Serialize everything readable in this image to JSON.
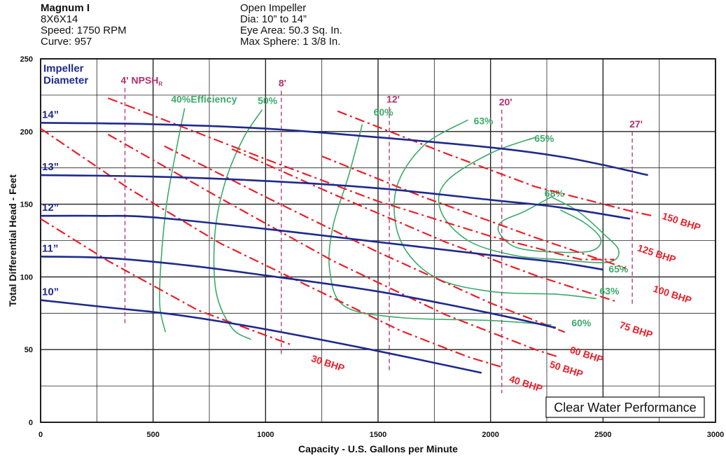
{
  "header": {
    "left": [
      "Magnum I",
      "8X6X14",
      "Speed: 1750 RPM",
      "Curve: 957"
    ],
    "right": [
      "Open Impeller",
      "Dia: 10” to 14”",
      "Eye Area: 50.3 Sq. In.",
      "Max Sphere: 1 3/8 In."
    ]
  },
  "colors": {
    "impeller": "#1f2a8c",
    "bhp": "#e8202a",
    "efficiency": "#3caa6a",
    "npsh": "#b0306e",
    "grid": "#222222"
  },
  "chart_data": {
    "type": "line",
    "title": "",
    "xlabel": "Capacity - U.S. Gallons per Minute",
    "ylabel": "Total Differential Head - Feet",
    "xlim": [
      0,
      3000
    ],
    "ylim": [
      0,
      250
    ],
    "xticks": [
      0,
      500,
      1000,
      1500,
      2000,
      2500,
      3000
    ],
    "yticks": [
      0,
      50,
      100,
      150,
      200,
      250
    ],
    "grid": true,
    "legend_box": "Clear Water Performance",
    "impeller_label": [
      "Impeller",
      "Diameter"
    ],
    "impeller_curves": [
      {
        "name": "14”",
        "points": [
          [
            0,
            206
          ],
          [
            500,
            205
          ],
          [
            1000,
            202
          ],
          [
            1500,
            196
          ],
          [
            2000,
            189
          ],
          [
            2300,
            183
          ],
          [
            2500,
            177
          ],
          [
            2700,
            170
          ]
        ]
      },
      {
        "name": "13”",
        "points": [
          [
            0,
            170
          ],
          [
            500,
            169
          ],
          [
            1000,
            166
          ],
          [
            1500,
            161
          ],
          [
            2000,
            153
          ],
          [
            2300,
            148
          ],
          [
            2620,
            140
          ]
        ]
      },
      {
        "name": "12”",
        "points": [
          [
            0,
            142
          ],
          [
            250,
            142
          ],
          [
            500,
            141
          ],
          [
            1000,
            133
          ],
          [
            1500,
            124
          ],
          [
            2000,
            115
          ],
          [
            2300,
            110
          ],
          [
            2500,
            105
          ]
        ]
      },
      {
        "name": "11”",
        "points": [
          [
            0,
            114
          ],
          [
            300,
            113
          ],
          [
            650,
            108
          ],
          [
            1000,
            101
          ],
          [
            1500,
            90
          ],
          [
            2000,
            75
          ],
          [
            2290,
            65
          ]
        ]
      },
      {
        "name": "10”",
        "points": [
          [
            0,
            84
          ],
          [
            300,
            79
          ],
          [
            600,
            74
          ],
          [
            1000,
            64
          ],
          [
            1500,
            49
          ],
          [
            1960,
            34
          ]
        ]
      }
    ],
    "bhp_lines": [
      {
        "label": "30 BHP",
        "points": [
          [
            0,
            140
          ],
          [
            300,
            111
          ],
          [
            700,
            77
          ],
          [
            1120,
            53
          ]
        ]
      },
      {
        "label": "40 BHP",
        "points": [
          [
            0,
            202
          ],
          [
            400,
            160
          ],
          [
            800,
            123
          ],
          [
            1200,
            93
          ],
          [
            1600,
            63
          ],
          [
            1900,
            45
          ],
          [
            2050,
            38
          ]
        ]
      },
      {
        "label": "50 BHP",
        "points": [
          [
            300,
            198
          ],
          [
            800,
            154
          ],
          [
            1300,
            111
          ],
          [
            1800,
            74
          ],
          [
            2200,
            50
          ],
          [
            2300,
            45
          ]
        ]
      },
      {
        "label": "60 BHP",
        "points": [
          [
            550,
            190
          ],
          [
            1000,
            155
          ],
          [
            1500,
            117
          ],
          [
            2000,
            82
          ],
          [
            2330,
            62
          ]
        ]
      },
      {
        "label": "75 BHP",
        "points": [
          [
            850,
            188
          ],
          [
            1300,
            157
          ],
          [
            1800,
            124
          ],
          [
            2200,
            101
          ],
          [
            2560,
            83
          ]
        ]
      },
      {
        "label": "100 BHP",
        "points": [
          [
            1250,
            183
          ],
          [
            1700,
            155
          ],
          [
            2200,
            127
          ],
          [
            2600,
            106
          ]
        ]
      },
      {
        "label": "125 BHP",
        "points": [
          [
            300,
            223
          ],
          [
            1000,
            181
          ],
          [
            1500,
            152
          ],
          [
            2000,
            128
          ],
          [
            2400,
            112
          ],
          [
            2550,
            112
          ]
        ]
      },
      {
        "label": "150 BHP",
        "points": [
          [
            1320,
            214
          ],
          [
            1800,
            185
          ],
          [
            2200,
            162
          ],
          [
            2630,
            145
          ],
          [
            2720,
            142
          ]
        ]
      }
    ],
    "efficiency_curves": [
      {
        "label": "40%Efficiency",
        "points": [
          [
            640,
            216
          ],
          [
            600,
            185
          ],
          [
            560,
            150
          ],
          [
            535,
            110
          ],
          [
            530,
            80
          ],
          [
            555,
            62
          ]
        ]
      },
      {
        "label": "50%",
        "points": [
          [
            985,
            215
          ],
          [
            900,
            195
          ],
          [
            820,
            165
          ],
          [
            775,
            130
          ],
          [
            780,
            90
          ],
          [
            850,
            65
          ],
          [
            935,
            57
          ]
        ]
      },
      {
        "label": "60%",
        "points": [
          [
            1430,
            205
          ],
          [
            1370,
            170
          ],
          [
            1300,
            135
          ],
          [
            1285,
            105
          ],
          [
            1350,
            80
          ],
          [
            1600,
            72
          ],
          [
            2000,
            70
          ],
          [
            2270,
            67
          ]
        ]
      },
      {
        "label": "63%",
        "points": [
          [
            1900,
            208
          ],
          [
            1700,
            190
          ],
          [
            1580,
            160
          ],
          [
            1600,
            125
          ],
          [
            1750,
            100
          ],
          [
            2000,
            90
          ],
          [
            2300,
            88
          ],
          [
            2470,
            85
          ]
        ]
      },
      {
        "label": "65%",
        "points": [
          [
            2200,
            196
          ],
          [
            2000,
            185
          ],
          [
            1800,
            165
          ],
          [
            1780,
            145
          ],
          [
            1900,
            125
          ],
          [
            2100,
            115
          ],
          [
            2300,
            112
          ],
          [
            2520,
            110
          ],
          [
            2570,
            118
          ],
          [
            2500,
            130
          ],
          [
            2390,
            145
          ],
          [
            2270,
            155
          ]
        ]
      },
      {
        "label": "68%",
        "points": [
          [
            2270,
            155
          ],
          [
            2150,
            145
          ],
          [
            2050,
            138
          ],
          [
            2040,
            130
          ],
          [
            2120,
            120
          ],
          [
            2300,
            117
          ],
          [
            2450,
            118
          ],
          [
            2490,
            126
          ],
          [
            2420,
            137
          ],
          [
            2310,
            146
          ]
        ]
      }
    ],
    "npsh_lines": [
      {
        "label": "4' NPSH",
        "label_sub": "R",
        "x": 375,
        "y1": 230,
        "y2": 68
      },
      {
        "label": "8'",
        "x": 1070,
        "y1": 228,
        "y2": 45
      },
      {
        "label": "12'",
        "x": 1550,
        "y1": 217,
        "y2": 35
      },
      {
        "label": "20'",
        "x": 2050,
        "y1": 215,
        "y2": 20
      },
      {
        "label": "27'",
        "x": 2630,
        "y1": 200,
        "y2": 80
      }
    ]
  }
}
